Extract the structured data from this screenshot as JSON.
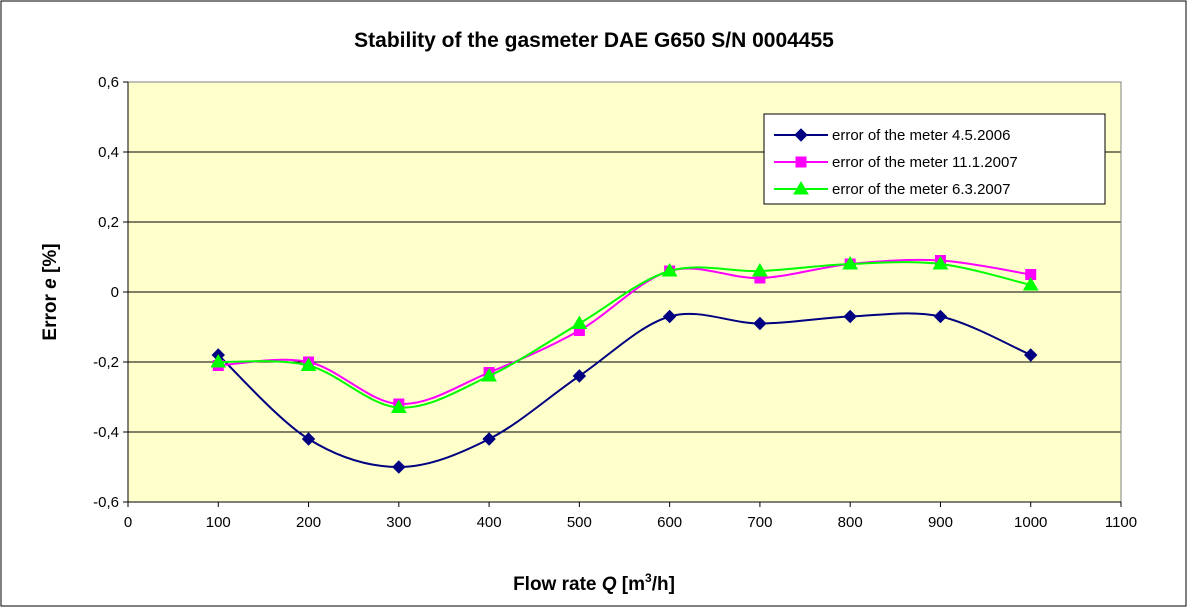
{
  "chart_data": {
    "type": "line",
    "title": "Stability of the gasmeter DAE G650 S/N 0004455",
    "xlabel": {
      "prefix": "Flow rate ",
      "var": "Q",
      "mid": " [m",
      "sup": "3",
      "suffix": "/h]"
    },
    "ylabel": {
      "prefix": "Error ",
      "var": "e",
      "suffix": " [%]"
    },
    "xlim": [
      0,
      1100
    ],
    "ylim": [
      -0.6,
      0.6
    ],
    "x_ticks": [
      0,
      100,
      200,
      300,
      400,
      500,
      600,
      700,
      800,
      900,
      1000,
      1100
    ],
    "x_tick_labels": [
      "0",
      "100",
      "200",
      "300",
      "400",
      "500",
      "600",
      "700",
      "800",
      "900",
      "1000",
      "1100"
    ],
    "y_ticks": [
      -0.6,
      -0.4,
      -0.2,
      0,
      0.2,
      0.4,
      0.6
    ],
    "y_tick_labels": [
      "-0,6",
      "-0,4",
      "-0,2",
      "0",
      "0,2",
      "0,4",
      "0,6"
    ],
    "grid": "horizontal",
    "legend_position": "top-right",
    "plot_background": "#FFFFCC",
    "x": [
      100,
      200,
      300,
      400,
      500,
      600,
      700,
      800,
      900,
      1000
    ],
    "series": [
      {
        "name": "error of the meter 4.5.2006",
        "color": "#000080",
        "marker": "diamond",
        "values": [
          -0.18,
          -0.42,
          -0.5,
          -0.42,
          -0.24,
          -0.07,
          -0.09,
          -0.07,
          -0.07,
          -0.18
        ]
      },
      {
        "name": "error of the meter 11.1.2007",
        "color": "#FF00FF",
        "marker": "square",
        "values": [
          -0.21,
          -0.2,
          -0.32,
          -0.23,
          -0.11,
          0.06,
          0.04,
          0.08,
          0.09,
          0.05
        ]
      },
      {
        "name": "error of the meter 6.3.2007",
        "color": "#00FF00",
        "marker": "triangle",
        "values": [
          -0.2,
          -0.21,
          -0.33,
          -0.24,
          -0.09,
          0.06,
          0.06,
          0.08,
          0.08,
          0.02
        ]
      }
    ]
  }
}
